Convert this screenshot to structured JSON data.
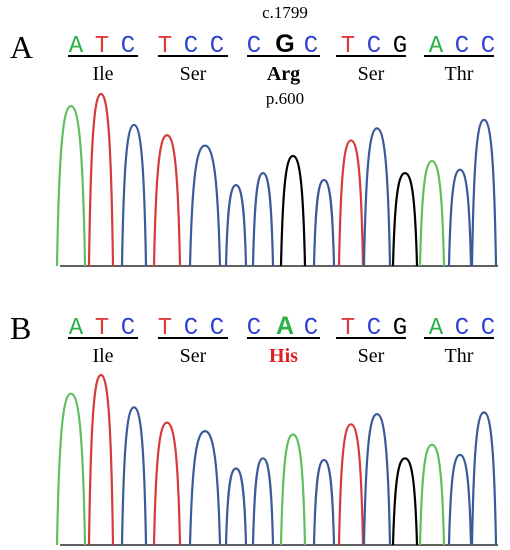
{
  "colors": {
    "A": "#2bb04a",
    "T": "#e03b3b",
    "C": "#2c3fd0",
    "G": "#000000",
    "trace_A": "#5fbf5f",
    "trace_T": "#d63a3a",
    "trace_C": "#3a5a9a",
    "trace_G": "#000000",
    "highlight": "#e02020"
  },
  "panels": [
    {
      "label": "A",
      "annotation_top": "c.1799",
      "annotation_bottom": "p.600",
      "bases": [
        "A",
        "T",
        "C",
        "T",
        "C",
        "C",
        "C",
        "G",
        "C",
        "T",
        "C",
        "G",
        "A",
        "C",
        "C"
      ],
      "highlight_index": 7,
      "highlight_color": "#000000",
      "codons": [
        "Ile",
        "Ser",
        "Arg",
        "Ser",
        "Thr"
      ],
      "highlight_codon": 2,
      "highlight_codon_color": "#000000",
      "peaks": [
        {
          "base": "A",
          "h": 0.93
        },
        {
          "base": "T",
          "h": 1.0
        },
        {
          "base": "C",
          "h": 0.82
        },
        {
          "base": "T",
          "h": 0.76
        },
        {
          "base": "C",
          "h": 0.7
        },
        {
          "base": "C",
          "h": 0.47
        },
        {
          "base": "C",
          "h": 0.54
        },
        {
          "base": "G",
          "h": 0.64
        },
        {
          "base": "C",
          "h": 0.5
        },
        {
          "base": "T",
          "h": 0.73
        },
        {
          "base": "C",
          "h": 0.8
        },
        {
          "base": "G",
          "h": 0.54
        },
        {
          "base": "A",
          "h": 0.61
        },
        {
          "base": "C",
          "h": 0.56
        },
        {
          "base": "C",
          "h": 0.85
        }
      ]
    },
    {
      "label": "B",
      "annotation_top": "",
      "annotation_bottom": "",
      "bases": [
        "A",
        "T",
        "C",
        "T",
        "C",
        "C",
        "C",
        "A",
        "C",
        "T",
        "C",
        "G",
        "A",
        "C",
        "C"
      ],
      "highlight_index": 7,
      "highlight_color": "#2bb04a",
      "codons": [
        "Ile",
        "Ser",
        "His",
        "Ser",
        "Thr"
      ],
      "highlight_codon": 2,
      "highlight_codon_color": "#e02020",
      "peaks": [
        {
          "base": "A",
          "h": 0.89
        },
        {
          "base": "T",
          "h": 1.0
        },
        {
          "base": "C",
          "h": 0.81
        },
        {
          "base": "T",
          "h": 0.72
        },
        {
          "base": "C",
          "h": 0.67
        },
        {
          "base": "C",
          "h": 0.45
        },
        {
          "base": "C",
          "h": 0.51
        },
        {
          "base": "A",
          "h": 0.65
        },
        {
          "base": "C",
          "h": 0.5
        },
        {
          "base": "T",
          "h": 0.71
        },
        {
          "base": "C",
          "h": 0.77
        },
        {
          "base": "G",
          "h": 0.51
        },
        {
          "base": "A",
          "h": 0.59
        },
        {
          "base": "C",
          "h": 0.53
        },
        {
          "base": "C",
          "h": 0.78
        }
      ]
    }
  ]
}
